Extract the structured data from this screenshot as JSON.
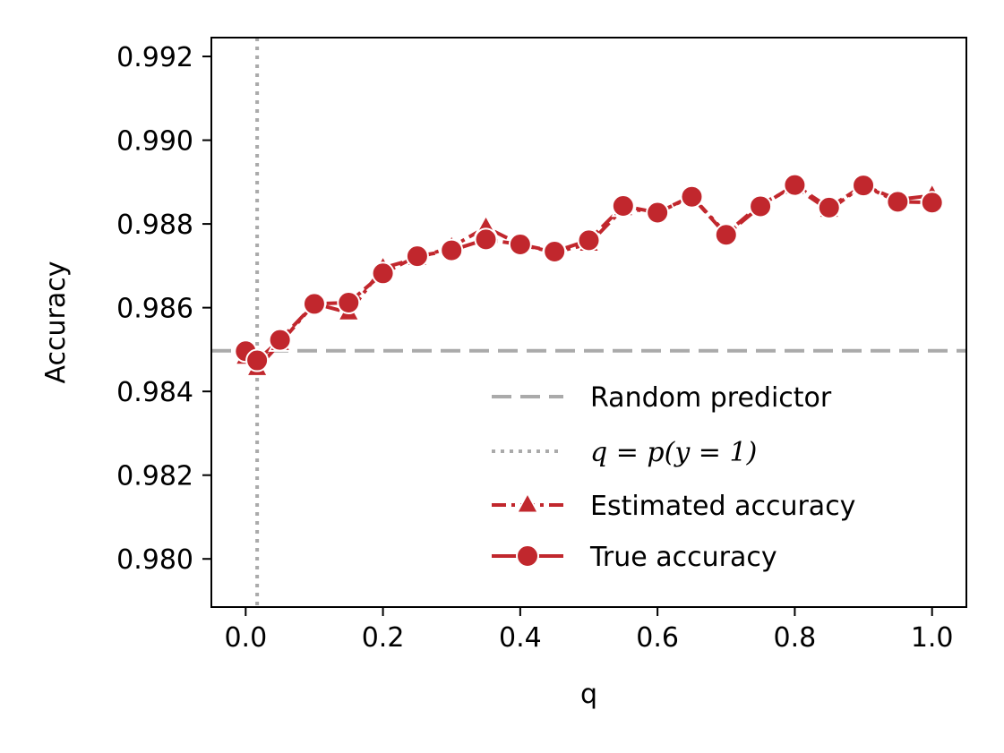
{
  "chart_data": {
    "type": "line",
    "xlabel": "q",
    "ylabel": "Accuracy",
    "xlim": [
      -0.05,
      1.05
    ],
    "ylim": [
      0.97885,
      0.99245
    ],
    "xticks": [
      0.0,
      0.2,
      0.4,
      0.6,
      0.8,
      1.0
    ],
    "xtick_labels": [
      "0.0",
      "0.2",
      "0.4",
      "0.6",
      "0.8",
      "1.0"
    ],
    "yticks": [
      0.98,
      0.982,
      0.984,
      0.986,
      0.988,
      0.99,
      0.992
    ],
    "ytick_labels": [
      "0.980",
      "0.982",
      "0.984",
      "0.986",
      "0.988",
      "0.990",
      "0.992"
    ],
    "grid": false,
    "legend_position": "lower-right",
    "reference_lines": [
      {
        "name": "Random predictor",
        "orientation": "horizontal",
        "value": 0.98497,
        "style": "dashed",
        "color": "#aaaaaa"
      },
      {
        "name": "q = p(y = 1)",
        "orientation": "vertical",
        "value": 0.0167,
        "style": "dotted",
        "color": "#aaaaaa"
      }
    ],
    "series": [
      {
        "name": "Estimated accuracy",
        "marker": "triangle",
        "line_style": "dashdot",
        "color": "#c1272d",
        "x": [
          0.0,
          0.0167,
          0.05,
          0.1,
          0.15,
          0.2,
          0.25,
          0.3,
          0.35,
          0.4,
          0.45,
          0.5,
          0.55,
          0.6,
          0.65,
          0.7,
          0.75,
          0.8,
          0.85,
          0.9,
          0.95,
          1.0
        ],
        "y": [
          0.98482,
          0.98455,
          0.98515,
          0.9861,
          0.98588,
          0.98695,
          0.98718,
          0.98745,
          0.98792,
          0.98751,
          0.98732,
          0.98752,
          0.98837,
          0.98828,
          0.98866,
          0.98777,
          0.98847,
          0.98888,
          0.98833,
          0.98892,
          0.98858,
          0.98868
        ]
      },
      {
        "name": "True accuracy",
        "marker": "circle",
        "line_style": "dashed",
        "color": "#c1272d",
        "x": [
          0.0,
          0.0167,
          0.05,
          0.1,
          0.15,
          0.2,
          0.25,
          0.3,
          0.35,
          0.4,
          0.45,
          0.5,
          0.55,
          0.6,
          0.65,
          0.7,
          0.75,
          0.8,
          0.85,
          0.9,
          0.95,
          1.0
        ],
        "y": [
          0.98496,
          0.98474,
          0.98523,
          0.98609,
          0.98612,
          0.98682,
          0.98723,
          0.98737,
          0.98763,
          0.98751,
          0.98734,
          0.98761,
          0.98843,
          0.98827,
          0.98865,
          0.98774,
          0.98842,
          0.98893,
          0.98839,
          0.98892,
          0.98853,
          0.98851
        ]
      }
    ],
    "legend": {
      "random_label": "Random predictor",
      "prior_label": "q = p(y = 1)",
      "estimated_label": "Estimated accuracy",
      "true_label": "True accuracy"
    }
  }
}
